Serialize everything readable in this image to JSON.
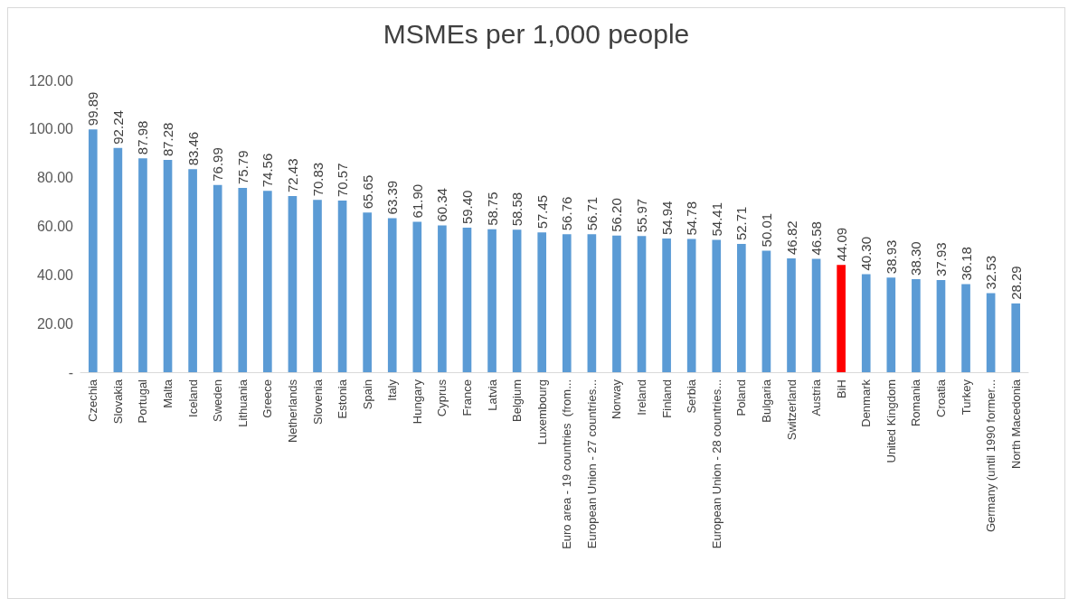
{
  "chart_data": {
    "type": "bar",
    "title": "MSMEs per 1,000 people",
    "categories": [
      "Czechia",
      "Slovakia",
      "Portugal",
      "Malta",
      "Iceland",
      "Sweden",
      "Lithuania",
      "Greece",
      "Netherlands",
      "Slovenia",
      "Estonia",
      "Spain",
      "Italy",
      "Hungary",
      "Cyprus",
      "France",
      "Latvia",
      "Belgium",
      "Luxembourg",
      "Euro area - 19 countries  (from...",
      "European Union - 27 countries...",
      "Norway",
      "Ireland",
      "Finland",
      "Serbia",
      "European Union - 28 countries...",
      "Poland",
      "Bulgaria",
      "Switzerland",
      "Austria",
      "BiH",
      "Denmark",
      "United Kingdom",
      "Romania",
      "Croatia",
      "Turkey",
      "Germany (until 1990 former...",
      "North Macedonia"
    ],
    "values": [
      99.89,
      92.24,
      87.98,
      87.28,
      83.46,
      76.99,
      75.79,
      74.56,
      72.43,
      70.83,
      70.57,
      65.65,
      63.39,
      61.9,
      60.34,
      59.4,
      58.75,
      58.58,
      57.45,
      56.76,
      56.71,
      56.2,
      55.97,
      54.94,
      54.78,
      54.41,
      52.71,
      50.01,
      46.82,
      46.58,
      44.09,
      40.3,
      38.93,
      38.3,
      37.93,
      36.18,
      32.53,
      28.29
    ],
    "value_labels": [
      "99.89",
      "92.24",
      "87.98",
      "87.28",
      "83.46",
      "76.99",
      "75.79",
      "74.56",
      "72.43",
      "70.83",
      "70.57",
      "65.65",
      "63.39",
      "61.90",
      "60.34",
      "59.40",
      "58.75",
      "58.58",
      "57.45",
      "56.76",
      "56.71",
      "56.20",
      "55.97",
      "54.94",
      "54.78",
      "54.41",
      "52.71",
      "50.01",
      "46.82",
      "46.58",
      "44.09",
      "40.30",
      "38.93",
      "38.30",
      "37.93",
      "36.18",
      "32.53",
      "28.29"
    ],
    "colors": [
      "#5b9bd5",
      "#5b9bd5",
      "#5b9bd5",
      "#5b9bd5",
      "#5b9bd5",
      "#5b9bd5",
      "#5b9bd5",
      "#5b9bd5",
      "#5b9bd5",
      "#5b9bd5",
      "#5b9bd5",
      "#5b9bd5",
      "#5b9bd5",
      "#5b9bd5",
      "#5b9bd5",
      "#5b9bd5",
      "#5b9bd5",
      "#5b9bd5",
      "#5b9bd5",
      "#5b9bd5",
      "#5b9bd5",
      "#5b9bd5",
      "#5b9bd5",
      "#5b9bd5",
      "#5b9bd5",
      "#5b9bd5",
      "#5b9bd5",
      "#5b9bd5",
      "#5b9bd5",
      "#5b9bd5",
      "#ff0000",
      "#5b9bd5",
      "#5b9bd5",
      "#5b9bd5",
      "#5b9bd5",
      "#5b9bd5",
      "#5b9bd5",
      "#5b9bd5"
    ],
    "ylim": [
      0,
      120
    ],
    "yticks": [
      {
        "value": 0,
        "label": "-"
      },
      {
        "value": 20,
        "label": "20.00"
      },
      {
        "value": 40,
        "label": "40.00"
      },
      {
        "value": 60,
        "label": "60.00"
      },
      {
        "value": 80,
        "label": "80.00"
      },
      {
        "value": 100,
        "label": "100.00"
      },
      {
        "value": 120,
        "label": "120.00"
      }
    ],
    "grid": false
  }
}
